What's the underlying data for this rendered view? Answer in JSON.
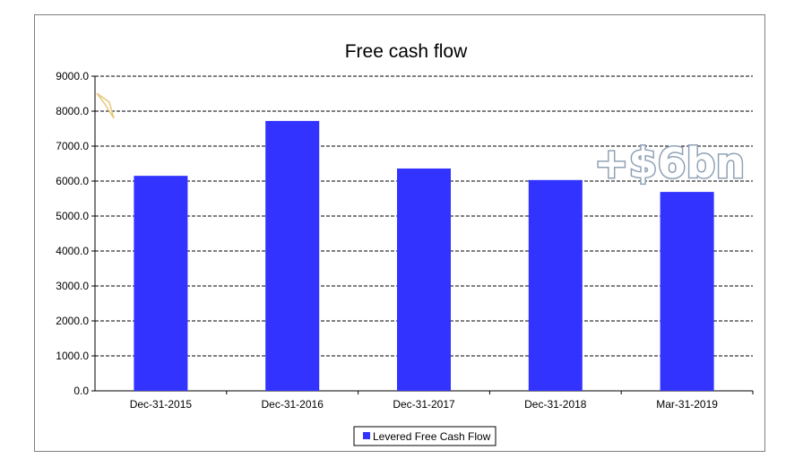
{
  "chart_data": {
    "type": "bar",
    "title": "Free cash flow",
    "categories": [
      "Dec-31-2015",
      "Dec-31-2016",
      "Dec-31-2017",
      "Dec-31-2018",
      "Mar-31-2019"
    ],
    "series": [
      {
        "name": "Levered Free Cash Flow",
        "values": [
          6150,
          7720,
          6360,
          6030,
          5690
        ],
        "color": "#3333ff"
      }
    ],
    "yticks": [
      "0.0",
      "1000.0",
      "2000.0",
      "3000.0",
      "4000.0",
      "5000.0",
      "6000.0",
      "7000.0",
      "8000.0",
      "9000.0"
    ],
    "ylim": [
      0,
      9000
    ],
    "grid": true,
    "legend_position": "bottom",
    "annotation": "+$6bn"
  }
}
